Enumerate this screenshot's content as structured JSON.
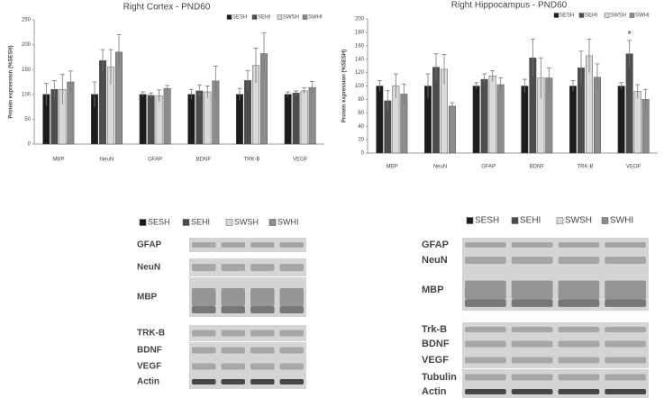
{
  "chart_data": [
    {
      "type": "bar",
      "title": "Right Cortex - PND60",
      "y_label": "Protein expression (%SESH)",
      "categories": [
        "MBP",
        "NeuN",
        "GFAP",
        "BDNF",
        "TRK-B",
        "VEGF"
      ],
      "series": [
        {
          "name": "SESH",
          "color": "#1c1c1c",
          "values": [
            100,
            100,
            100,
            100,
            100,
            100
          ],
          "errors": [
            22,
            25,
            5,
            10,
            12,
            5
          ]
        },
        {
          "name": "SEHI",
          "color": "#4d4d4d",
          "values": [
            110,
            168,
            98,
            107,
            128,
            103
          ],
          "errors": [
            18,
            22,
            5,
            12,
            20,
            4
          ]
        },
        {
          "name": "SWSH",
          "color": "#d9d9d9",
          "values": [
            110,
            155,
            97,
            105,
            158,
            107
          ],
          "errors": [
            30,
            35,
            12,
            12,
            35,
            6
          ]
        },
        {
          "name": "SWHI",
          "color": "#8c8c8c",
          "values": [
            125,
            185,
            112,
            127,
            182,
            114
          ],
          "errors": [
            22,
            35,
            6,
            30,
            42,
            12
          ]
        }
      ],
      "ylim": [
        0,
        250
      ],
      "yticks": [
        0,
        50,
        100,
        150,
        200,
        250
      ],
      "legend": "upper right"
    },
    {
      "type": "bar",
      "title": "Right Hippocampus - PND60",
      "y_label": "Protein expression (%SESH)",
      "categories": [
        "MBP",
        "NeuN",
        "GFAP",
        "BDNF",
        "TRK-B",
        "VEGF"
      ],
      "series": [
        {
          "name": "SESH",
          "color": "#1c1c1c",
          "values": [
            100,
            100,
            100,
            100,
            100,
            100
          ],
          "errors": [
            8,
            18,
            5,
            10,
            8,
            5
          ]
        },
        {
          "name": "SEHI",
          "color": "#4d4d4d",
          "values": [
            78,
            128,
            110,
            142,
            127,
            148
          ],
          "errors": [
            15,
            20,
            8,
            28,
            25,
            20
          ]
        },
        {
          "name": "SWSH",
          "color": "#d9d9d9",
          "values": [
            100,
            125,
            115,
            112,
            145,
            92
          ],
          "errors": [
            18,
            22,
            8,
            30,
            25,
            10
          ]
        },
        {
          "name": "SWHI",
          "color": "#8c8c8c",
          "values": [
            88,
            70,
            102,
            112,
            113,
            80
          ],
          "errors": [
            15,
            5,
            10,
            15,
            20,
            15
          ]
        }
      ],
      "ylim": [
        0,
        200
      ],
      "yticks": [
        0,
        20,
        40,
        60,
        80,
        100,
        120,
        140,
        160,
        180,
        200
      ],
      "legend": "upper right",
      "annotations": [
        {
          "text": "*",
          "series": 1,
          "category": 5
        }
      ]
    }
  ],
  "blots": [
    {
      "legend": [
        "SESH",
        "SEHI",
        "SWSH",
        "SWHI"
      ],
      "labels": [
        "GFAP",
        "NeuN",
        "MBP",
        "TRK-B",
        "BDNF",
        "VEGF",
        "Actin"
      ]
    },
    {
      "legend": [
        "SESH",
        "SEHI",
        "SWSH",
        "SWHI"
      ],
      "labels": [
        "GFAP",
        "NeuN",
        "MBP",
        "Trk-B",
        "BDNF",
        "VEGF",
        "Tubulin",
        "Actin"
      ]
    }
  ]
}
